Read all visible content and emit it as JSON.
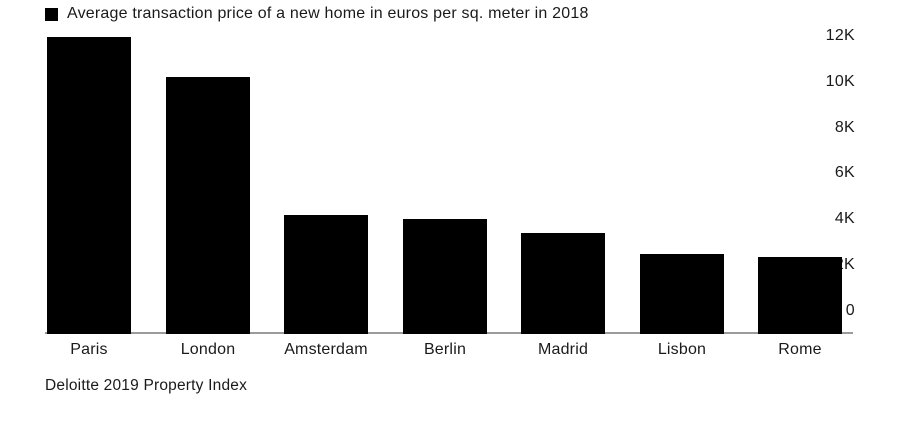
{
  "chart_data": {
    "type": "bar",
    "title": "Average transaction price of a new home in euros per sq. meter in 2018",
    "source": "Deloitte 2019 Property Index",
    "categories": [
      "Paris",
      "London",
      "Amsterdam",
      "Berlin",
      "Madrid",
      "Lisbon",
      "Rome"
    ],
    "values": [
      12910,
      11185,
      5140,
      4973,
      4343,
      3467,
      3297
    ],
    "unit": "euros per sq. meter",
    "xlabel": "",
    "ylabel": "",
    "ylim": [
      0,
      13430
    ],
    "y_tick_values": [
      0,
      2000,
      4000,
      6000,
      8000,
      10000,
      12000
    ],
    "y_tick_labels": [
      "0",
      "2K",
      "4K",
      "6K",
      "8K",
      "10K",
      "12K"
    ],
    "y_axis_side": "right",
    "grid": false,
    "legend_position": "top-left",
    "bar_color": "#000000",
    "axis_line_color": "#9b9b9b",
    "text_color": "#1a1a1a",
    "background": "#ffffff"
  }
}
